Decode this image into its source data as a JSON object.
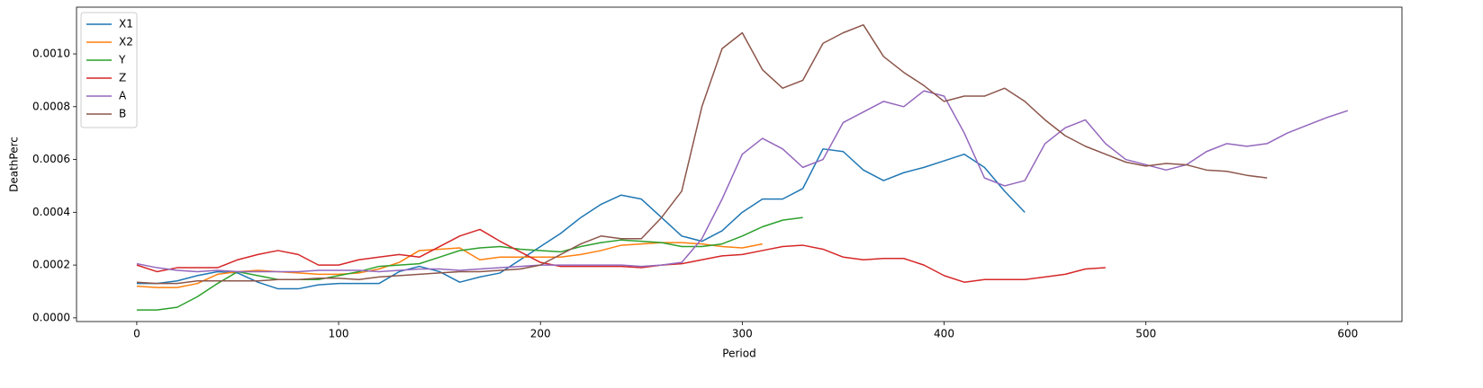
{
  "chart_data": {
    "type": "line",
    "xlabel": "Period",
    "ylabel": "DeathPerc",
    "x": [
      0,
      10,
      20,
      30,
      40,
      50,
      60,
      70,
      80,
      90,
      100,
      110,
      120,
      130,
      140,
      150,
      160,
      170,
      180,
      190,
      200,
      210,
      220,
      230,
      240,
      250,
      260,
      270,
      280,
      290,
      300,
      310,
      320,
      330,
      340,
      350,
      360,
      370,
      380,
      390,
      400,
      410,
      420,
      430,
      440,
      450,
      460,
      470,
      480,
      490,
      500,
      510,
      520,
      530,
      540,
      550,
      560,
      570,
      580,
      590,
      600
    ],
    "xlim": [
      -29.85,
      626.85
    ],
    "xticks": [
      0,
      100,
      200,
      300,
      400,
      500,
      600
    ],
    "ylim": [
      -1.4e-05,
      0.001177
    ],
    "yticks": [
      {
        "value": 0,
        "label": "0.0000"
      },
      0.0002,
      0.0004,
      0.0006,
      0.0008,
      {
        "value": 0.001,
        "label": "0.0010"
      }
    ],
    "legend": "upper left",
    "series": [
      {
        "name": "X1",
        "color": "#1f77b4",
        "values": [
          0.00013,
          0.00013,
          0.00014,
          0.00016,
          0.000175,
          0.00017,
          0.000135,
          0.00011,
          0.00011,
          0.000125,
          0.00013,
          0.00013,
          0.00013,
          0.000175,
          0.000195,
          0.000175,
          0.000135,
          0.000155,
          0.00017,
          0.00022,
          0.00027,
          0.00032,
          0.00038,
          0.00043,
          0.000465,
          0.00045,
          0.00038,
          0.00031,
          0.00029,
          0.00033,
          0.0004,
          0.00045,
          0.00045,
          0.00049,
          0.00064,
          0.00063,
          0.00056,
          0.00052,
          0.00055,
          0.00057,
          0.000595,
          0.00062,
          0.00057,
          0.00048,
          0.0004,
          null,
          null,
          null,
          null,
          null,
          null,
          null,
          null,
          null,
          null,
          null,
          null,
          null,
          null,
          null,
          null
        ]
      },
      {
        "name": "X2",
        "color": "#ff7f0e",
        "values": [
          0.00012,
          0.000115,
          0.000115,
          0.00013,
          0.000165,
          0.000175,
          0.00018,
          0.000175,
          0.00017,
          0.000165,
          0.000165,
          0.00017,
          0.000185,
          0.00021,
          0.000255,
          0.00026,
          0.000265,
          0.00022,
          0.00023,
          0.00023,
          0.00023,
          0.00023,
          0.00024,
          0.000255,
          0.000275,
          0.00028,
          0.000285,
          0.000285,
          0.00028,
          0.00027,
          0.000265,
          0.00028,
          null,
          null,
          null,
          null,
          null,
          null,
          null,
          null,
          null,
          null,
          null,
          null,
          null,
          null,
          null,
          null,
          null,
          null,
          null,
          null,
          null,
          null,
          null,
          null,
          null,
          null,
          null,
          null,
          null
        ]
      },
      {
        "name": "Y",
        "color": "#2ca02c",
        "values": [
          3e-05,
          3e-05,
          4e-05,
          8e-05,
          0.00013,
          0.000175,
          0.00016,
          0.000145,
          0.000145,
          0.000145,
          0.00016,
          0.000175,
          0.000195,
          0.0002,
          0.000205,
          0.00023,
          0.000255,
          0.000265,
          0.00027,
          0.00026,
          0.000255,
          0.00025,
          0.00027,
          0.000285,
          0.000295,
          0.00029,
          0.000285,
          0.00027,
          0.00027,
          0.00028,
          0.00031,
          0.000345,
          0.00037,
          0.00038,
          null,
          null,
          null,
          null,
          null,
          null,
          null,
          null,
          null,
          null,
          null,
          null,
          null,
          null,
          null,
          null,
          null,
          null,
          null,
          null,
          null,
          null,
          null,
          null,
          null,
          null,
          null
        ]
      },
      {
        "name": "Z",
        "color": "#d62728",
        "values": [
          0.0002,
          0.000175,
          0.00019,
          0.00019,
          0.00019,
          0.00022,
          0.00024,
          0.000255,
          0.00024,
          0.0002,
          0.0002,
          0.00022,
          0.00023,
          0.00024,
          0.00023,
          0.00027,
          0.00031,
          0.000335,
          0.00029,
          0.00025,
          0.00021,
          0.000195,
          0.000195,
          0.000195,
          0.000195,
          0.00019,
          0.0002,
          0.000205,
          0.00022,
          0.000235,
          0.00024,
          0.000255,
          0.00027,
          0.000275,
          0.00026,
          0.00023,
          0.00022,
          0.000225,
          0.000225,
          0.0002,
          0.00016,
          0.000135,
          0.000145,
          0.000145,
          0.000145,
          0.000155,
          0.000165,
          0.000185,
          0.00019,
          null,
          null,
          null,
          null,
          null,
          null,
          null,
          null,
          null,
          null,
          null,
          null
        ]
      },
      {
        "name": "A",
        "color": "#9467bd",
        "values": [
          0.000205,
          0.00019,
          0.00018,
          0.000175,
          0.00018,
          0.000175,
          0.000175,
          0.000175,
          0.000175,
          0.00018,
          0.00018,
          0.00018,
          0.000175,
          0.00018,
          0.000185,
          0.000185,
          0.00018,
          0.000185,
          0.00019,
          0.000195,
          0.0002,
          0.0002,
          0.0002,
          0.0002,
          0.0002,
          0.000195,
          0.0002,
          0.00021,
          0.0003,
          0.00045,
          0.00062,
          0.00068,
          0.00064,
          0.00057,
          0.0006,
          0.00074,
          0.00078,
          0.00082,
          0.0008,
          0.00086,
          0.00084,
          0.0007,
          0.00053,
          0.0005,
          0.00052,
          0.00066,
          0.00072,
          0.00075,
          0.00066,
          0.0006,
          0.00058,
          0.00056,
          0.00058,
          0.00063,
          0.00066,
          0.00065,
          0.00066,
          0.0007,
          0.00073,
          0.00076,
          0.000785
        ]
      },
      {
        "name": "B",
        "color": "#8c564b",
        "values": [
          0.000135,
          0.00013,
          0.00013,
          0.00014,
          0.00014,
          0.00014,
          0.00014,
          0.000145,
          0.000145,
          0.00015,
          0.00015,
          0.000145,
          0.000155,
          0.00016,
          0.000165,
          0.00017,
          0.000175,
          0.000175,
          0.00018,
          0.000185,
          0.0002,
          0.00024,
          0.00028,
          0.00031,
          0.0003,
          0.0003,
          0.00038,
          0.00048,
          0.0008,
          0.00102,
          0.00108,
          0.00094,
          0.00087,
          0.0009,
          0.00104,
          0.00108,
          0.00111,
          0.00099,
          0.00093,
          0.00088,
          0.00082,
          0.00084,
          0.00084,
          0.00087,
          0.00082,
          0.00075,
          0.00069,
          0.00065,
          0.00062,
          0.00059,
          0.000575,
          0.000585,
          0.00058,
          0.00056,
          0.000555,
          0.00054,
          0.00053,
          null,
          null,
          null,
          null
        ]
      }
    ]
  }
}
